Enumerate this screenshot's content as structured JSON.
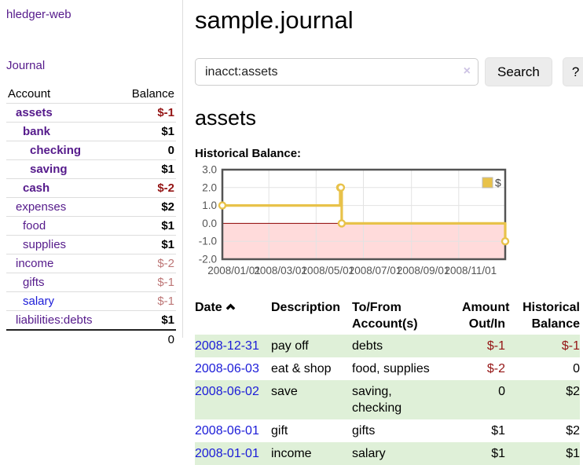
{
  "app": {
    "title": "hledger-web"
  },
  "colors": {
    "link_purple": "#551a8b",
    "link_blue": "#1b1bd8",
    "neg_strong": "#941414",
    "neg_soft": "#bd7676",
    "row_green": "#dff0d8",
    "chart_line": "#e8c24a",
    "chart_negative_fill": "#ffdbdb",
    "chart_zero_line": "#8b0000",
    "chart_border": "#545454",
    "chart_grid": "#e3e3e3",
    "axis_text": "#545454"
  },
  "sidebar": {
    "nav": {
      "journal_label": "Journal"
    },
    "accounts_header": {
      "account": "Account",
      "balance": "Balance"
    },
    "accounts": [
      {
        "label": "assets",
        "indent": 1,
        "bold": true,
        "balance": "$-1"
      },
      {
        "label": "bank",
        "indent": 2,
        "bold": true,
        "balance": "$1"
      },
      {
        "label": "checking",
        "indent": 3,
        "bold": true,
        "balance": "0"
      },
      {
        "label": "saving",
        "indent": 3,
        "bold": true,
        "balance": "$1"
      },
      {
        "label": "cash",
        "indent": 2,
        "bold": true,
        "balance": "$-2"
      },
      {
        "label": "expenses",
        "indent": 1,
        "bold": false,
        "balance": "$2"
      },
      {
        "label": "food",
        "indent": 2,
        "bold": false,
        "balance": "$1"
      },
      {
        "label": "supplies",
        "indent": 2,
        "bold": false,
        "balance": "$1"
      },
      {
        "label": "income",
        "indent": 1,
        "bold": false,
        "balance": "$-2"
      },
      {
        "label": "gifts",
        "indent": 2,
        "bold": false,
        "balance": "$-1"
      },
      {
        "label": "salary",
        "indent": 2,
        "bold": false,
        "balance": "$-1",
        "variant": "blue"
      },
      {
        "label": "liabilities:debts",
        "indent": 1,
        "bold": false,
        "balance": "$1"
      }
    ],
    "total": "0"
  },
  "main": {
    "title": "sample.journal",
    "search": {
      "value": "inacct:assets",
      "clear_icon": "×",
      "search_label": "Search",
      "help_label": "?"
    },
    "account_heading": "assets",
    "chart_heading": "Historical Balance:"
  },
  "chart_data": {
    "type": "line",
    "step": true,
    "title": "Historical Balance:",
    "legend": [
      {
        "label": "$",
        "color": "#e8c24a"
      }
    ],
    "legend_position": "top-right",
    "x_ticks": [
      "2008/01/01",
      "2008/03/01",
      "2008/05/01",
      "2008/07/01",
      "2008/09/01",
      "2008/11/01"
    ],
    "y_ticks": [
      "3.0",
      "2.0",
      "1.0",
      "0.0",
      "-1.0",
      "-2.0"
    ],
    "ylim": [
      -2,
      3
    ],
    "x_range": [
      "2008/01/01",
      "2008/12/31"
    ],
    "series": [
      {
        "name": "$",
        "points": [
          {
            "date": "2008/01/01",
            "value": 1
          },
          {
            "date": "2008/06/01",
            "value": 2
          },
          {
            "date": "2008/06/02",
            "value": 2
          },
          {
            "date": "2008/06/03",
            "value": 0
          },
          {
            "date": "2008/12/31",
            "value": -1
          }
        ]
      }
    ]
  },
  "register_table": {
    "headers": {
      "date": "Date",
      "description": "Description",
      "account": "To/From Account(s)",
      "amount": "Amount Out/In",
      "balance": "Historical Balance"
    },
    "sort": {
      "column": "date",
      "direction": "asc"
    },
    "rows": [
      {
        "date": "2008-12-31",
        "description": "pay off",
        "accounts": "debts",
        "amount": "$-1",
        "balance": "$-1"
      },
      {
        "date": "2008-06-03",
        "description": "eat & shop",
        "accounts": "food, supplies",
        "amount": "$-2",
        "balance": "0"
      },
      {
        "date": "2008-06-02",
        "description": "save",
        "accounts": "saving,\nchecking",
        "amount": "0",
        "balance": "$2"
      },
      {
        "date": "2008-06-01",
        "description": "gift",
        "accounts": "gifts",
        "amount": "$1",
        "balance": "$2"
      },
      {
        "date": "2008-01-01",
        "description": "income",
        "accounts": "salary",
        "amount": "$1",
        "balance": "$1"
      }
    ]
  }
}
